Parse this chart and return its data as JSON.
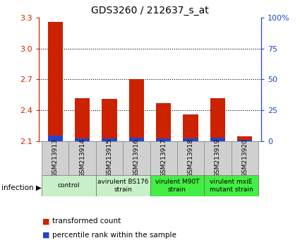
{
  "title": "GDS3260 / 212637_s_at",
  "samples": [
    "GSM213913",
    "GSM213914",
    "GSM213915",
    "GSM213916",
    "GSM213917",
    "GSM213918",
    "GSM213919",
    "GSM213920"
  ],
  "red_values": [
    3.26,
    2.52,
    2.51,
    2.7,
    2.47,
    2.36,
    2.52,
    2.15
  ],
  "blue_values": [
    0.055,
    0.025,
    0.025,
    0.035,
    0.025,
    0.025,
    0.035,
    0.015
  ],
  "y_min": 2.1,
  "y_max": 3.3,
  "y_ticks_red": [
    2.1,
    2.4,
    2.7,
    3.0,
    3.3
  ],
  "y_ticks_blue": [
    0,
    25,
    50,
    75,
    100
  ],
  "y_ticks_blue_labels": [
    "0",
    "25",
    "50",
    "75",
    "100%"
  ],
  "grid_lines": [
    2.4,
    2.7,
    3.0
  ],
  "bar_width": 0.55,
  "red_color": "#cc2200",
  "blue_color": "#2244cc",
  "label_bg": "#d0d0d0",
  "groups": [
    {
      "label": "control",
      "samples": [
        0,
        1
      ],
      "color": "#c8f0c8"
    },
    {
      "label": "avirulent BS176\nstrain",
      "samples": [
        2,
        3
      ],
      "color": "#c8f0c8"
    },
    {
      "label": "virulent M90T\nstrain",
      "samples": [
        4,
        5
      ],
      "color": "#44ee44"
    },
    {
      "label": "virulent mxiE\nmutant strain",
      "samples": [
        6,
        7
      ],
      "color": "#44ee44"
    }
  ],
  "infection_label": "infection",
  "legend_red": "transformed count",
  "legend_blue": "percentile rank within the sample"
}
